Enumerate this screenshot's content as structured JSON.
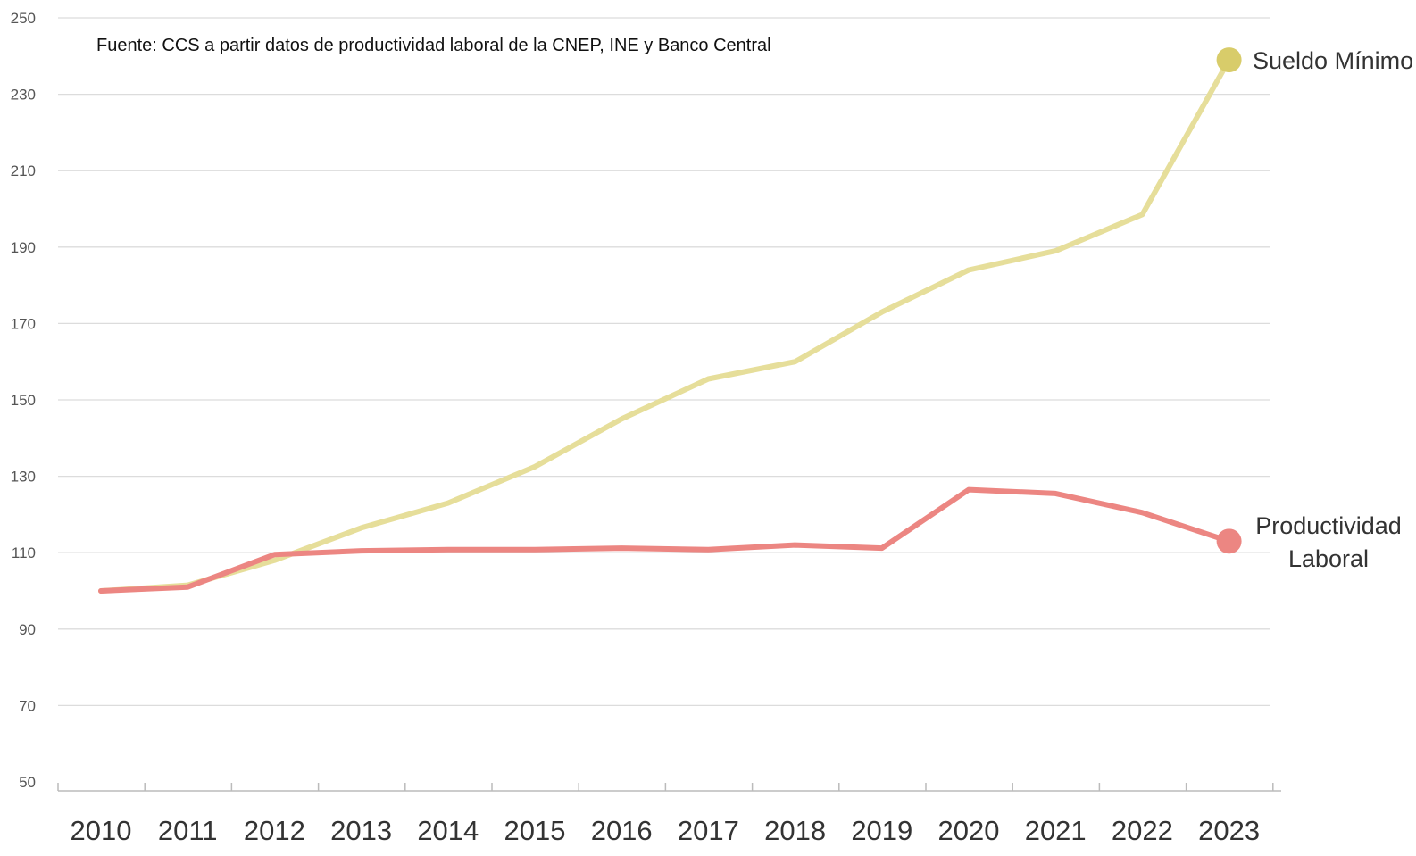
{
  "chart_data": {
    "type": "line",
    "source_note": "Fuente: CCS a partir datos de productividad laboral de la CNEP, INE y Banco Central",
    "x": [
      "2010",
      "2011",
      "2012",
      "2013",
      "2014",
      "2015",
      "2016",
      "2017",
      "2018",
      "2019",
      "2020",
      "2021",
      "2022",
      "2023"
    ],
    "y_ticks": [
      50,
      70,
      90,
      110,
      130,
      150,
      170,
      190,
      210,
      230,
      250
    ],
    "ylim": [
      50,
      250
    ],
    "grid": true,
    "legend": "end-of-line labels",
    "series": [
      {
        "name": "Sueldo Mínimo",
        "label_lines": [
          "Sueldo Mínimo"
        ],
        "color": "#e6de9a",
        "marker_color": "#d8cc6a",
        "values": [
          100,
          101.5,
          108,
          116.5,
          123,
          132.5,
          145,
          155.5,
          160,
          173,
          184,
          189,
          198.5,
          239
        ]
      },
      {
        "name": "Productividad Laboral",
        "label_lines": [
          "Productividad",
          "Laboral"
        ],
        "color": "#ec8682",
        "marker_color": "#ec8682",
        "values": [
          100,
          101,
          109.5,
          110.5,
          110.8,
          110.8,
          111.2,
          110.8,
          112,
          111.2,
          126.5,
          125.5,
          120.5,
          113
        ]
      }
    ]
  }
}
